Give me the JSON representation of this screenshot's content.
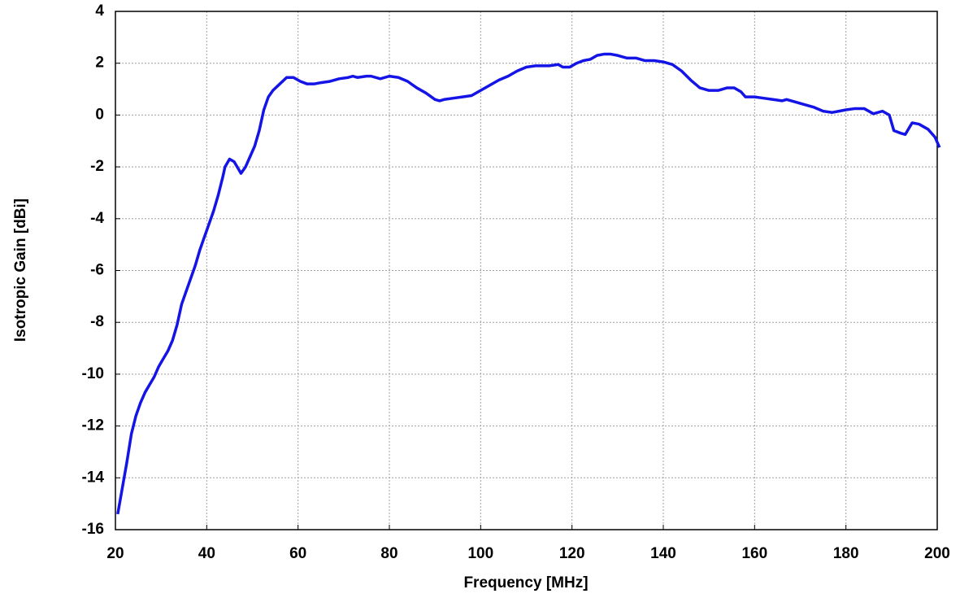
{
  "chart_data": {
    "type": "line",
    "xlabel": "Frequency [MHz]",
    "ylabel": "Isotropic Gain [dBi]",
    "xlim": [
      20,
      200
    ],
    "ylim": [
      -16,
      4
    ],
    "xticks": [
      20,
      40,
      60,
      80,
      100,
      120,
      140,
      160,
      180,
      200
    ],
    "yticks": [
      -16,
      -14,
      -12,
      -10,
      -8,
      -6,
      -4,
      -2,
      0,
      2,
      4
    ],
    "grid": true,
    "series": [
      {
        "color": "#1414e6",
        "x": [
          20.5,
          21.5,
          22.5,
          23.5,
          24.5,
          25.5,
          26.5,
          27.5,
          28.5,
          29.5,
          30.5,
          31.5,
          32.5,
          33.5,
          34.5,
          35.5,
          36.5,
          37.5,
          38.5,
          39.5,
          40.5,
          41.5,
          42.5,
          43.5,
          44,
          45,
          46,
          47,
          47.5,
          48.5,
          49.5,
          50.5,
          51.5,
          52.5,
          53.5,
          54.5,
          56,
          57.5,
          59,
          60.5,
          62,
          63.5,
          65,
          67,
          69,
          71,
          72,
          73,
          75,
          76,
          78,
          80,
          82,
          84,
          86,
          88,
          90,
          91,
          92,
          94,
          96,
          98,
          100,
          102,
          104,
          106,
          108,
          110,
          112,
          115,
          117,
          118,
          119.5,
          121,
          122.5,
          124,
          125.5,
          127,
          128.5,
          130,
          132,
          134,
          136,
          138,
          140,
          142,
          144,
          146,
          148,
          150,
          152,
          154,
          155.5,
          157,
          158,
          160,
          162,
          164,
          166,
          167,
          169,
          171,
          173,
          175,
          177,
          178.5,
          180,
          182,
          184,
          186,
          188,
          189.5,
          190.5,
          192,
          193,
          194.5,
          196,
          198,
          199.5,
          200.5
        ],
        "values": [
          -15.4,
          -14.4,
          -13.4,
          -12.3,
          -11.6,
          -11.1,
          -10.7,
          -10.4,
          -10.1,
          -9.7,
          -9.4,
          -9.1,
          -8.7,
          -8.1,
          -7.3,
          -6.8,
          -6.3,
          -5.8,
          -5.2,
          -4.7,
          -4.2,
          -3.7,
          -3.1,
          -2.4,
          -2.0,
          -1.7,
          -1.8,
          -2.1,
          -2.25,
          -2.0,
          -1.6,
          -1.2,
          -0.6,
          0.2,
          0.7,
          0.95,
          1.2,
          1.45,
          1.45,
          1.3,
          1.2,
          1.2,
          1.25,
          1.3,
          1.4,
          1.45,
          1.5,
          1.45,
          1.5,
          1.5,
          1.4,
          1.5,
          1.45,
          1.3,
          1.05,
          0.85,
          0.6,
          0.55,
          0.6,
          0.65,
          0.7,
          0.75,
          0.95,
          1.15,
          1.35,
          1.5,
          1.7,
          1.85,
          1.9,
          1.9,
          1.95,
          1.85,
          1.85,
          2.0,
          2.1,
          2.15,
          2.3,
          2.35,
          2.35,
          2.3,
          2.2,
          2.2,
          2.1,
          2.1,
          2.05,
          1.95,
          1.7,
          1.35,
          1.05,
          0.95,
          0.95,
          1.05,
          1.05,
          0.9,
          0.7,
          0.7,
          0.65,
          0.6,
          0.55,
          0.6,
          0.5,
          0.4,
          0.3,
          0.15,
          0.1,
          0.15,
          0.2,
          0.25,
          0.25,
          0.05,
          0.15,
          0.0,
          -0.6,
          -0.7,
          -0.75,
          -0.3,
          -0.35,
          -0.55,
          -0.85,
          -1.25
        ]
      }
    ]
  }
}
